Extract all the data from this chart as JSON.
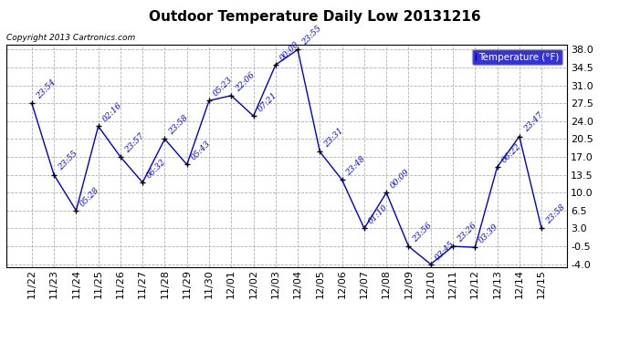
{
  "title": "Outdoor Temperature Daily Low 20131216",
  "copyright": "Copyright 2013 Cartronics.com",
  "legend_label": "Temperature (°F)",
  "x_labels": [
    "11/22",
    "11/23",
    "11/24",
    "11/25",
    "11/26",
    "11/27",
    "11/28",
    "11/29",
    "11/30",
    "12/01",
    "12/02",
    "12/03",
    "12/04",
    "12/05",
    "12/06",
    "12/07",
    "12/08",
    "12/09",
    "12/10",
    "12/11",
    "12/12",
    "12/13",
    "12/14",
    "12/15"
  ],
  "y_values": [
    27.5,
    13.5,
    6.5,
    23.0,
    17.0,
    12.0,
    20.5,
    15.5,
    28.0,
    29.0,
    25.0,
    35.0,
    38.0,
    18.0,
    12.5,
    3.0,
    10.0,
    -0.5,
    -4.0,
    -0.5,
    -0.7,
    15.0,
    21.0,
    3.0
  ],
  "point_labels": [
    "23:54",
    "23:55",
    "05:28",
    "02:16",
    "23:57",
    "06:32",
    "23:58",
    "05:43",
    "05:23",
    "22:06",
    "07:21",
    "00:00",
    "23:55",
    "23:31",
    "23:48",
    "01:10",
    "00:09",
    "23:56",
    "03:45",
    "23:26",
    "03:39",
    "06:22",
    "23:47",
    "23:58"
  ],
  "ylim": [
    -4.5,
    39.0
  ],
  "yticks": [
    38.0,
    34.5,
    31.0,
    27.5,
    24.0,
    20.5,
    17.0,
    13.5,
    10.0,
    6.5,
    3.0,
    -0.5,
    -4.0
  ],
  "ytick_labels": [
    "38.0",
    "34.5",
    "31.0",
    "27.5",
    "24.0",
    "20.5",
    "17.0",
    "13.5",
    "10.0",
    "6.5",
    "3.0",
    "-0.5",
    "-4.0"
  ],
  "line_color": "#0000cd",
  "marker_color": "#000000",
  "bg_color": "#ffffff",
  "plot_bg_color": "#ffffff",
  "grid_color": "#b0b0b0",
  "title_fontsize": 11,
  "tick_fontsize": 8,
  "label_fontsize": 7,
  "legend_bg": "#0000cc",
  "legend_fg": "#ffffff"
}
